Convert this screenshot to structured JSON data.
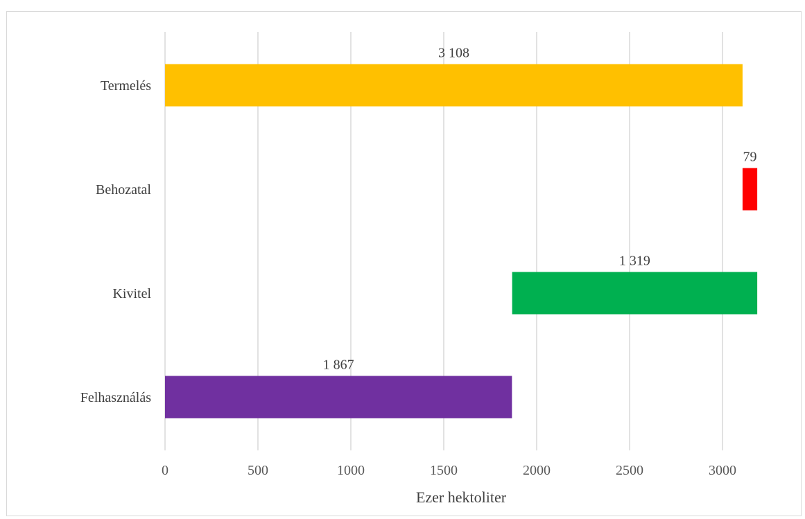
{
  "chart_data": {
    "type": "bar",
    "orientation": "horizontal",
    "title": "",
    "xlabel": "Ezer hektoliter",
    "ylabel": "",
    "xlim": [
      0,
      3200
    ],
    "xticks": [
      0,
      500,
      1000,
      1500,
      2000,
      2500,
      3000
    ],
    "grid": true,
    "legend": "none",
    "bars": [
      {
        "category": "Termelés",
        "start": 0,
        "value": 3108,
        "label": "3 108",
        "color": "#FFC000"
      },
      {
        "category": "Behozatal",
        "start": 3108,
        "value": 79,
        "label": "79",
        "color": "#FF0000"
      },
      {
        "category": "Kivitel",
        "start": 1868,
        "value": 1319,
        "label": "1 319",
        "color": "#00B050"
      },
      {
        "category": "Felhasználás",
        "start": 0,
        "value": 1867,
        "label": "1 867",
        "color": "#7030A0"
      }
    ]
  }
}
